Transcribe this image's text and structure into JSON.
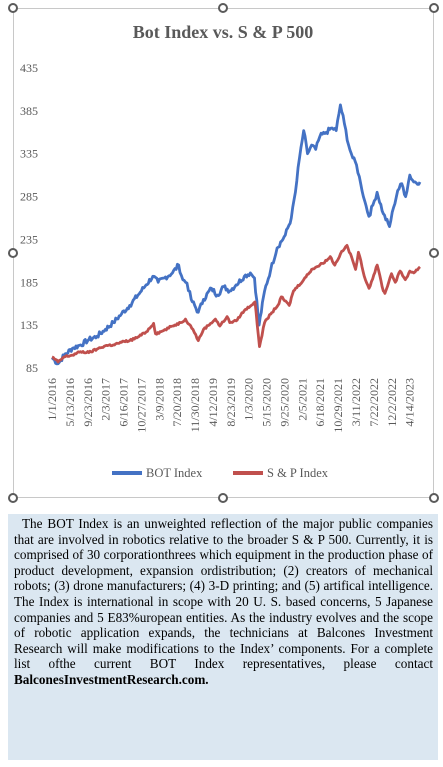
{
  "chart_data": {
    "type": "line",
    "title": "Bot Index vs. S & P 500",
    "ylim": [
      85,
      435
    ],
    "yticks": [
      85,
      135,
      185,
      235,
      285,
      335,
      385,
      435
    ],
    "grid": false,
    "legend_position": "bottom",
    "x_tick_labels": [
      "1/1/2016",
      "5/13/2016",
      "9/23/2016",
      "2/3/2017",
      "6/16/2017",
      "10/27/2017",
      "3/9/2018",
      "7/20/2018",
      "11/30/2018",
      "4/12/2019",
      "8/23/2019",
      "1/3/2020",
      "5/15/2020",
      "9/25/2020",
      "2/5/2021",
      "6/18/2021",
      "10/29/2021",
      "3/11/2022",
      "7/22/2022",
      "12/2/2022",
      "4/14/2023"
    ],
    "x_start": "1/1/2016",
    "x_end": "6/30/2023",
    "series": [
      {
        "name": "BOT Index",
        "color": "#4472c4",
        "points": [
          [
            "1/1/2016",
            97
          ],
          [
            "2/15/2016",
            90
          ],
          [
            "4/1/2016",
            100
          ],
          [
            "6/1/2016",
            108
          ],
          [
            "8/1/2016",
            112
          ],
          [
            "10/1/2016",
            118
          ],
          [
            "12/1/2016",
            122
          ],
          [
            "2/1/2017",
            130
          ],
          [
            "4/1/2017",
            138
          ],
          [
            "6/1/2017",
            148
          ],
          [
            "8/1/2017",
            158
          ],
          [
            "10/1/2017",
            170
          ],
          [
            "12/1/2017",
            182
          ],
          [
            "1/20/2018",
            192
          ],
          [
            "3/1/2018",
            185
          ],
          [
            "4/15/2018",
            190
          ],
          [
            "6/15/2018",
            196
          ],
          [
            "7/31/2018",
            205
          ],
          [
            "8/31/2018",
            188
          ],
          [
            "10/1/2018",
            184
          ],
          [
            "11/1/2018",
            165
          ],
          [
            "12/24/2018",
            150
          ],
          [
            "2/1/2019",
            165
          ],
          [
            "4/1/2019",
            178
          ],
          [
            "5/15/2019",
            170
          ],
          [
            "7/1/2019",
            180
          ],
          [
            "8/15/2019",
            175
          ],
          [
            "10/1/2019",
            182
          ],
          [
            "12/1/2019",
            192
          ],
          [
            "1/15/2020",
            196
          ],
          [
            "2/15/2020",
            190
          ],
          [
            "3/20/2020",
            135
          ],
          [
            "4/30/2020",
            175
          ],
          [
            "6/15/2020",
            200
          ],
          [
            "8/1/2020",
            225
          ],
          [
            "10/1/2020",
            240
          ],
          [
            "11/15/2020",
            260
          ],
          [
            "12/15/2020",
            290
          ],
          [
            "1/15/2021",
            330
          ],
          [
            "2/15/2021",
            362
          ],
          [
            "3/15/2021",
            335
          ],
          [
            "4/15/2021",
            345
          ],
          [
            "5/15/2021",
            340
          ],
          [
            "6/15/2021",
            355
          ],
          [
            "8/1/2021",
            360
          ],
          [
            "9/15/2021",
            365
          ],
          [
            "10/15/2021",
            362
          ],
          [
            "11/15/2021",
            392
          ],
          [
            "12/15/2021",
            370
          ],
          [
            "1/15/2022",
            345
          ],
          [
            "2/15/2022",
            330
          ],
          [
            "3/15/2022",
            322
          ],
          [
            "4/15/2022",
            300
          ],
          [
            "5/15/2022",
            280
          ],
          [
            "6/15/2022",
            262
          ],
          [
            "7/15/2022",
            275
          ],
          [
            "8/15/2022",
            290
          ],
          [
            "9/30/2022",
            265
          ],
          [
            "11/15/2022",
            250
          ],
          [
            "12/15/2022",
            272
          ],
          [
            "1/15/2023",
            292
          ],
          [
            "2/15/2023",
            300
          ],
          [
            "3/15/2023",
            285
          ],
          [
            "4/15/2023",
            310
          ],
          [
            "5/15/2023",
            302
          ],
          [
            "6/30/2023",
            302
          ]
        ]
      },
      {
        "name": "S & P Index",
        "color": "#c0504d",
        "points": [
          [
            "1/1/2016",
            98
          ],
          [
            "2/15/2016",
            92
          ],
          [
            "4/1/2016",
            98
          ],
          [
            "6/1/2016",
            100
          ],
          [
            "8/1/2016",
            104
          ],
          [
            "10/1/2016",
            103
          ],
          [
            "12/1/2016",
            107
          ],
          [
            "2/1/2017",
            111
          ],
          [
            "4/1/2017",
            112
          ],
          [
            "6/1/2017",
            115
          ],
          [
            "8/1/2017",
            117
          ],
          [
            "10/1/2017",
            121
          ],
          [
            "12/1/2017",
            127
          ],
          [
            "1/26/2018",
            137
          ],
          [
            "2/9/2018",
            125
          ],
          [
            "4/1/2018",
            128
          ],
          [
            "6/15/2018",
            134
          ],
          [
            "8/15/2018",
            138
          ],
          [
            "9/20/2018",
            142
          ],
          [
            "11/15/2018",
            130
          ],
          [
            "12/24/2018",
            117
          ],
          [
            "2/1/2019",
            130
          ],
          [
            "4/30/2019",
            142
          ],
          [
            "6/3/2019",
            134
          ],
          [
            "7/26/2019",
            145
          ],
          [
            "8/15/2019",
            138
          ],
          [
            "10/1/2019",
            140
          ],
          [
            "12/1/2019",
            152
          ],
          [
            "2/19/2020",
            162
          ],
          [
            "3/23/2020",
            110
          ],
          [
            "4/30/2020",
            138
          ],
          [
            "6/15/2020",
            148
          ],
          [
            "8/15/2020",
            160
          ],
          [
            "9/1/2020",
            168
          ],
          [
            "10/30/2020",
            158
          ],
          [
            "12/1/2020",
            175
          ],
          [
            "2/15/2021",
            188
          ],
          [
            "4/15/2021",
            200
          ],
          [
            "6/15/2021",
            205
          ],
          [
            "8/15/2021",
            212
          ],
          [
            "9/1/2021",
            215
          ],
          [
            "10/4/2021",
            205
          ],
          [
            "11/15/2021",
            218
          ],
          [
            "1/3/2022",
            228
          ],
          [
            "2/15/2022",
            210
          ],
          [
            "3/8/2022",
            200
          ],
          [
            "3/29/2022",
            220
          ],
          [
            "5/20/2022",
            188
          ],
          [
            "6/16/2022",
            178
          ],
          [
            "8/16/2022",
            205
          ],
          [
            "9/30/2022",
            175
          ],
          [
            "10/12/2022",
            172
          ],
          [
            "11/30/2022",
            195
          ],
          [
            "12/28/2022",
            185
          ],
          [
            "2/2/2023",
            198
          ],
          [
            "3/13/2023",
            188
          ],
          [
            "4/15/2023",
            198
          ],
          [
            "5/15/2023",
            196
          ],
          [
            "6/30/2023",
            203
          ]
        ]
      }
    ]
  },
  "description": {
    "paragraph": "The BOT Index is an unweighted reflection of the major public companies that are involved in robotics relative to the broader S & P 500. Currently, it is comprised of 30 corporationthrees which equipment in the production phase of product development, expansion ordistribution; (2) creators of mechanical robots; (3) drone manufacturers; (4) 3-D printing; and (5) artifical intelligence. The Index is international in scope with 20 U. S. based concerns, 5 Japanese companies and 5 E83%uropean entities. As the industry evolves and the scope of robotic application expands, the technicians at Balcones Investment Research will make modifications to the Index’ components. For a  complete list ofthe current BOT Index representatives, please contact",
    "link": "BalconesInvestmentResearch.com."
  }
}
